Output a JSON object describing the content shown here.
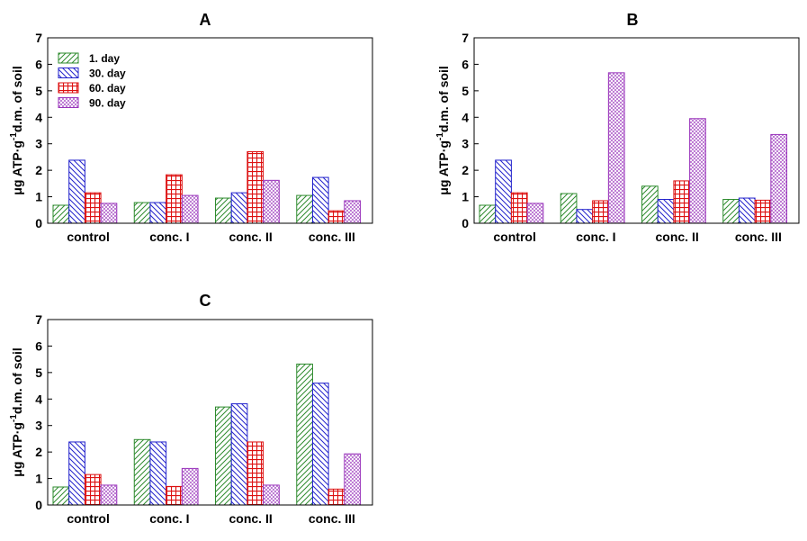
{
  "colors": {
    "series_1_day": "#2e8b2e",
    "series_30_day": "#2222cc",
    "series_60_day": "#dd1111",
    "series_90_day": "#9933bb"
  },
  "legend_labels": [
    "1. day",
    "30. day",
    "60. day",
    "90. day"
  ],
  "ylabel": {
    "main": "μg ATP·g",
    "sup": "-1",
    "rest": "d.m. of soil"
  },
  "chart_data": [
    {
      "type": "bar",
      "title": "A",
      "categories": [
        "control",
        "conc. I",
        "conc. II",
        "conc. III"
      ],
      "series": [
        {
          "name": "1. day",
          "values": [
            0.68,
            0.78,
            0.95,
            1.05
          ]
        },
        {
          "name": "30. day",
          "values": [
            2.38,
            0.78,
            1.15,
            1.73
          ]
        },
        {
          "name": "60. day",
          "values": [
            1.15,
            1.83,
            2.7,
            0.47
          ]
        },
        {
          "name": "90. day",
          "values": [
            0.75,
            1.05,
            1.62,
            0.85
          ]
        }
      ],
      "ylim": [
        0,
        7
      ],
      "yticks": [
        "0",
        "1",
        "2",
        "3",
        "4",
        "5",
        "6",
        "7"
      ],
      "legend": "top-left",
      "grid": false
    },
    {
      "type": "bar",
      "title": "B",
      "categories": [
        "control",
        "conc. I",
        "conc. II",
        "conc. III"
      ],
      "series": [
        {
          "name": "1. day",
          "values": [
            0.68,
            1.12,
            1.4,
            0.9
          ]
        },
        {
          "name": "30. day",
          "values": [
            2.38,
            0.52,
            0.9,
            0.95
          ]
        },
        {
          "name": "60. day",
          "values": [
            1.15,
            0.85,
            1.6,
            0.87
          ]
        },
        {
          "name": "90. day",
          "values": [
            0.75,
            5.68,
            3.95,
            3.35
          ]
        }
      ],
      "ylim": [
        0,
        7
      ],
      "yticks": [
        "0",
        "1",
        "2",
        "3",
        "4",
        "5",
        "6",
        "7"
      ],
      "grid": false
    },
    {
      "type": "bar",
      "title": "C",
      "categories": [
        "control",
        "conc. I",
        "conc. II",
        "conc. III"
      ],
      "series": [
        {
          "name": "1. day",
          "values": [
            0.68,
            2.47,
            3.7,
            5.32
          ]
        },
        {
          "name": "30. day",
          "values": [
            2.38,
            2.38,
            3.82,
            4.6
          ]
        },
        {
          "name": "60. day",
          "values": [
            1.15,
            0.7,
            2.38,
            0.6
          ]
        },
        {
          "name": "90. day",
          "values": [
            0.75,
            1.38,
            0.75,
            1.93
          ]
        }
      ],
      "ylim": [
        0,
        7
      ],
      "yticks": [
        "0",
        "1",
        "2",
        "3",
        "4",
        "5",
        "6",
        "7"
      ],
      "grid": false
    }
  ]
}
